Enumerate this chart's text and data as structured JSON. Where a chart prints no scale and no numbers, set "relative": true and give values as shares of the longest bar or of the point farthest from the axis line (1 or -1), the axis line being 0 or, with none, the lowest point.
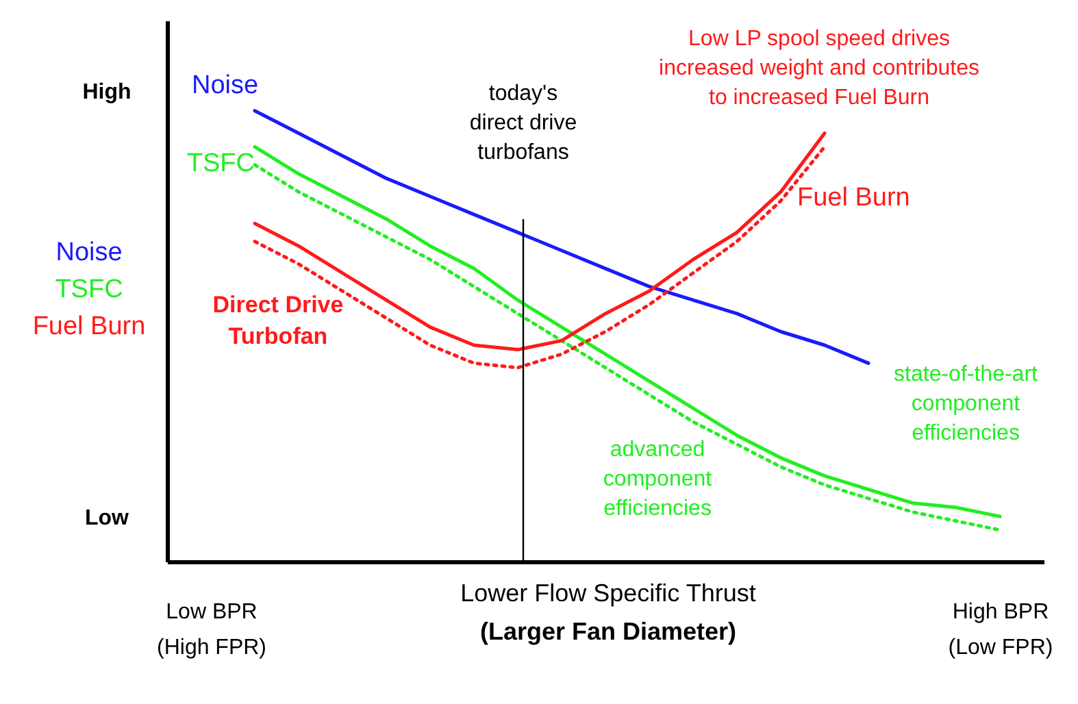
{
  "chart_data": {
    "type": "line",
    "relative": true,
    "xlabel": "Lower Flow Specific Thrust\n(Larger Fan Diameter)",
    "ylabel": "Noise\nTSFC\nFuel Burn",
    "categories": [
      "Low BPR\n(High FPR)",
      null,
      null,
      null,
      null,
      null,
      null,
      null,
      null,
      null,
      null,
      null,
      null,
      null,
      null,
      null,
      null,
      null,
      "High BPR\n(Low FPR)"
    ],
    "series": [
      {
        "name": "Noise",
        "color": "#1a1aff",
        "line_style": "solid",
        "values": [
          null,
          1.0,
          0.95,
          0.9,
          0.85,
          0.81,
          0.77,
          0.73,
          0.69,
          0.65,
          0.61,
          0.58,
          0.55,
          0.51,
          0.48,
          0.44,
          null,
          null,
          null
        ]
      },
      {
        "name": "TSFC",
        "color": "#22ee22",
        "line_style": "solid",
        "values": [
          null,
          0.92,
          0.86,
          0.81,
          0.76,
          0.7,
          0.65,
          0.58,
          0.52,
          0.46,
          0.4,
          0.34,
          0.28,
          0.23,
          0.19,
          0.16,
          0.13,
          0.12,
          0.1
        ]
      },
      {
        "color": "#22ee22",
        "line_style": "dotted",
        "values": [
          null,
          0.88,
          0.82,
          0.77,
          0.72,
          0.67,
          0.61,
          0.55,
          0.49,
          0.43,
          0.37,
          0.31,
          0.26,
          0.21,
          0.17,
          0.14,
          0.11,
          0.09,
          0.07
        ]
      },
      {
        "name": "Fuel Burn",
        "color": "#ff1a1a",
        "line_style": "solid",
        "values": [
          null,
          0.75,
          0.7,
          0.64,
          0.58,
          0.52,
          0.48,
          0.47,
          0.49,
          0.55,
          0.6,
          0.67,
          0.73,
          0.82,
          0.95,
          null,
          null,
          null,
          null
        ]
      },
      {
        "color": "#ff1a1a",
        "line_style": "dotted",
        "values": [
          null,
          0.71,
          0.66,
          0.6,
          0.54,
          0.48,
          0.44,
          0.43,
          0.46,
          0.51,
          0.57,
          0.64,
          0.71,
          0.8,
          0.92,
          null,
          null,
          null,
          null
        ]
      }
    ],
    "annotations": [
      "today's\ndirect drive\nturbofans",
      "Low LP spool speed drives\nincreased weight and contributes\nto increased Fuel Burn",
      "Direct Drive\nTurbofan",
      "advanced\ncomponent\nefficiencies",
      "state-of-the-art\ncomponent\nefficiencies",
      "High",
      "Low"
    ],
    "marker": "none"
  }
}
